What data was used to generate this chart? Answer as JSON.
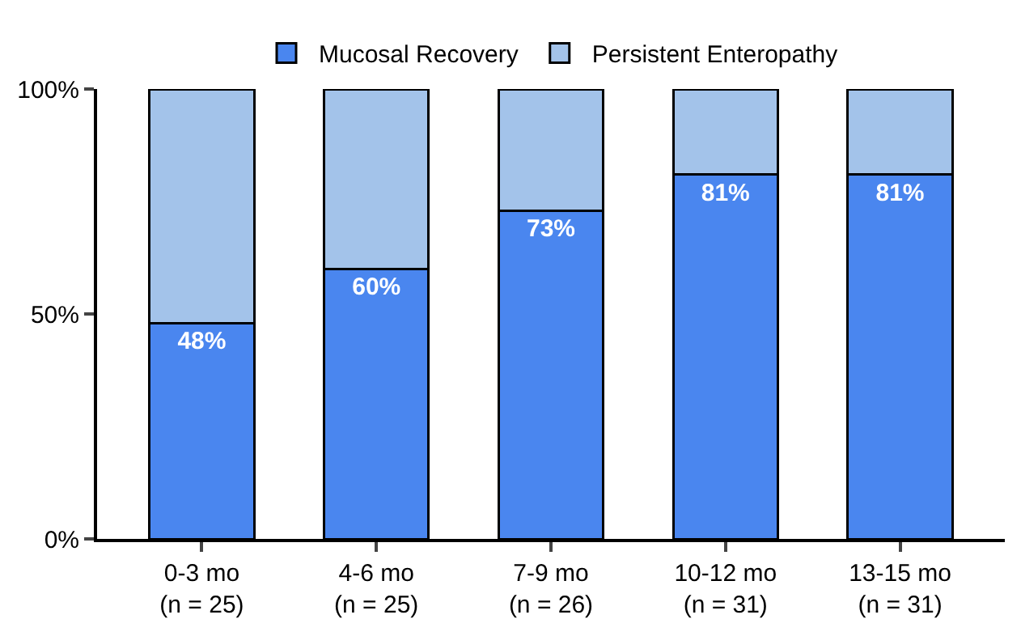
{
  "chart_data": {
    "type": "bar",
    "stacked": true,
    "categories": [
      "0-3 mo\n(n = 25)",
      "4-6 mo\n(n = 25)",
      "7-9 mo\n(n = 26)",
      "10-12 mo\n(n = 31)",
      "13-15 mo\n(n = 31)"
    ],
    "series": [
      {
        "name": "Mucosal Recovery",
        "color": "#4a86ef",
        "values": [
          48,
          60,
          73,
          81,
          81
        ],
        "value_labels": [
          "48%",
          "60%",
          "73%",
          "81%",
          "81%"
        ]
      },
      {
        "name": "Persistent Enteropathy",
        "color": "#a3c3ea",
        "values": [
          52,
          40,
          27,
          19,
          19
        ]
      }
    ],
    "ylim": [
      0,
      100
    ],
    "yticks": [
      {
        "value": 0,
        "label": "0%"
      },
      {
        "value": 50,
        "label": "50%"
      },
      {
        "value": 100,
        "label": "100%"
      }
    ],
    "grid": false,
    "legend": "top"
  }
}
